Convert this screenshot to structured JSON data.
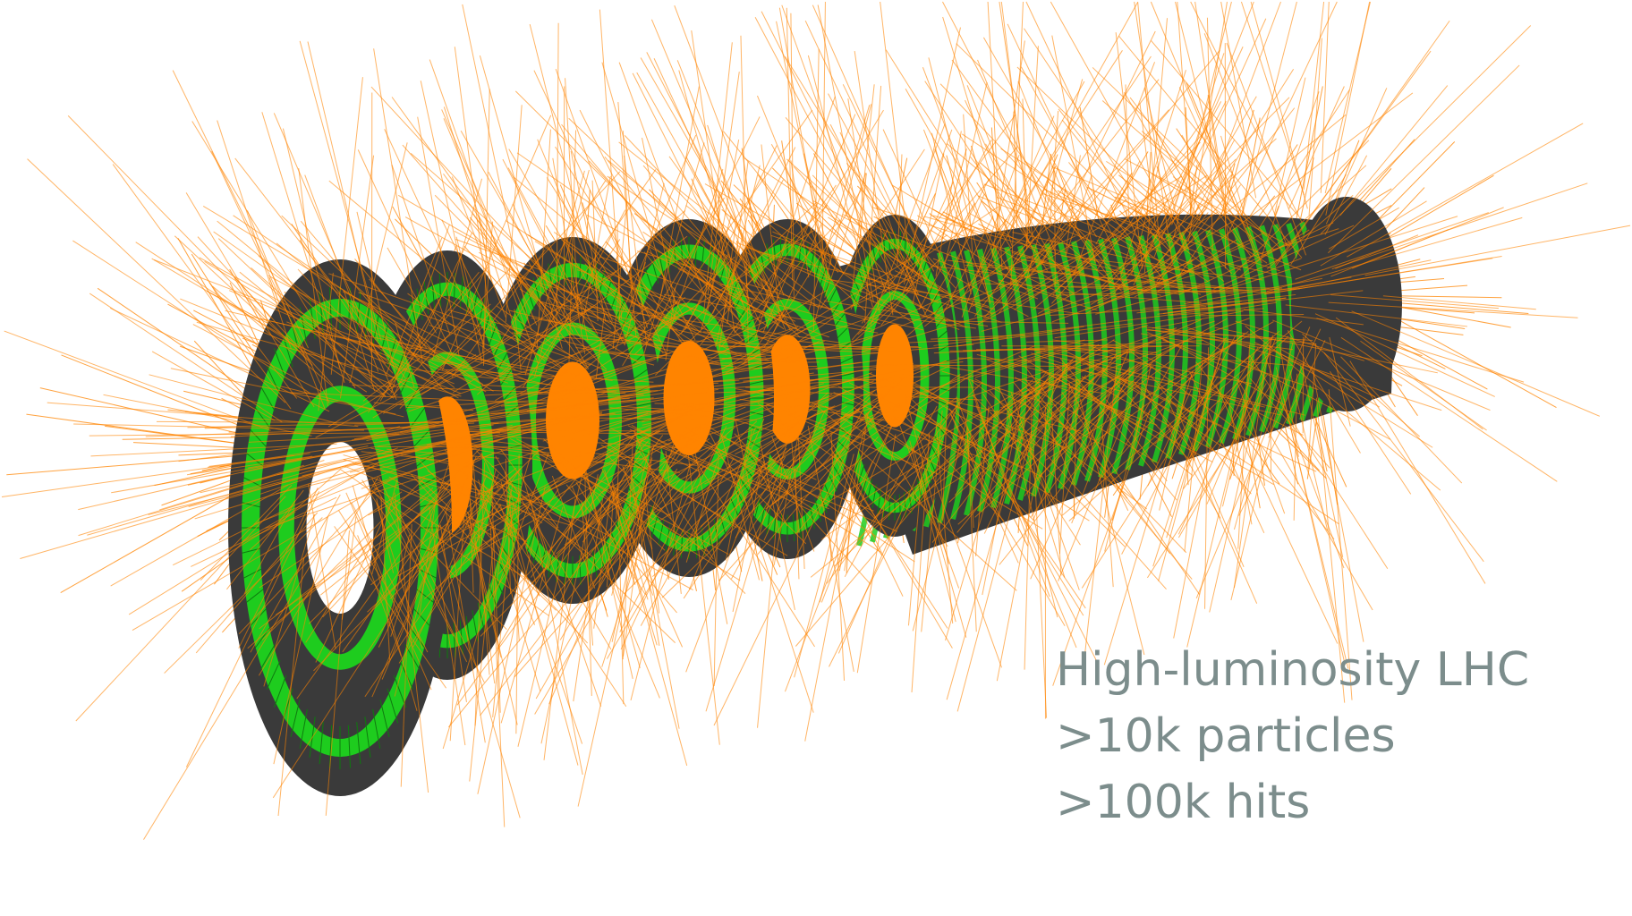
{
  "colors": {
    "background": "#ffffff",
    "track_orange": "#ff8400",
    "module_green": "#1ecc1e",
    "module_dark": "#3a3a3a",
    "caption_gray": "#7c8d8c"
  },
  "caption": {
    "line1": "High-luminosity LHC",
    "line2": ">10k particles",
    "line3": ">100k hits"
  }
}
